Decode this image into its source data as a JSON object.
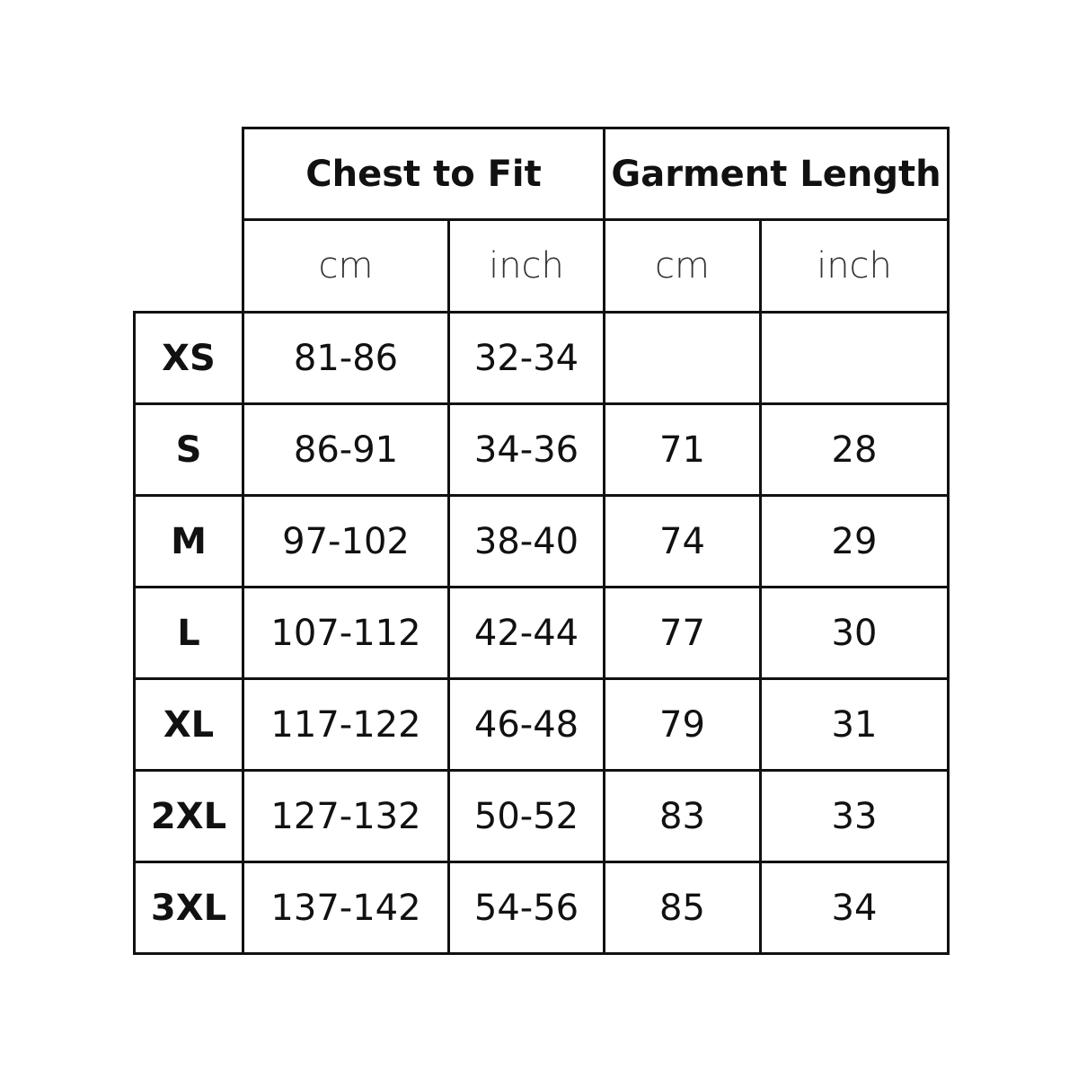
{
  "headers": {
    "chest": "Chest to Fit",
    "length": "Garment Length"
  },
  "units": [
    "cm",
    "inch",
    "cm",
    "inch"
  ],
  "rows": [
    {
      "size": "XS",
      "values": [
        "81-86",
        "32-34",
        "",
        ""
      ]
    },
    {
      "size": "S",
      "values": [
        "86-91",
        "34-36",
        "71",
        "28"
      ]
    },
    {
      "size": "M",
      "values": [
        "97-102",
        "38-40",
        "74",
        "29"
      ]
    },
    {
      "size": "L",
      "values": [
        "107-112",
        "42-44",
        "77",
        "30"
      ]
    },
    {
      "size": "XL",
      "values": [
        "117-122",
        "46-48",
        "79",
        "31"
      ]
    },
    {
      "size": "2XL",
      "values": [
        "127-132",
        "50-52",
        "83",
        "33"
      ]
    },
    {
      "size": "3XL",
      "values": [
        "137-142",
        "54-56",
        "85",
        "34"
      ]
    }
  ]
}
